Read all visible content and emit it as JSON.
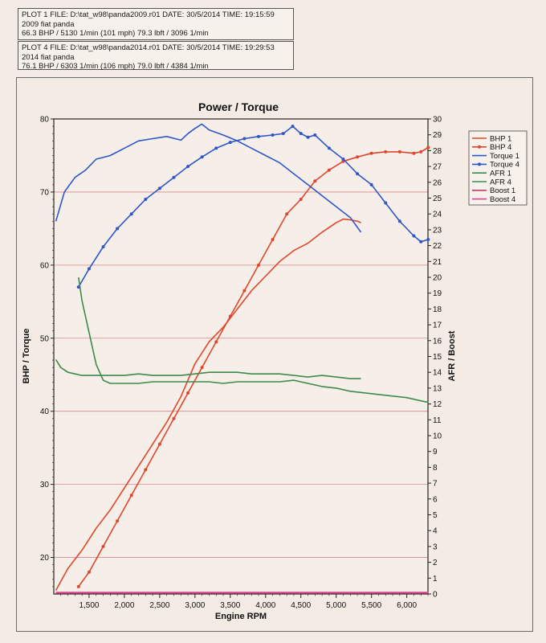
{
  "plots": [
    {
      "header": "PLOT 1 FILE: D:\\tat_w98\\panda2009.r01  DATE: 30/5/2014  TIME: 19:15:59",
      "description": "2009 fiat panda",
      "summary": "66.3 BHP / 5130 1/min (101 mph)     79.3 lbft / 3096 1/min"
    },
    {
      "header": "PLOT 4 FILE: D:\\tat_w98\\panda2014.r01  DATE: 30/5/2014  TIME: 19:29:53",
      "description": "2014 fiat panda",
      "summary": "76.1 BHP / 6303 1/min (106 mph)     79.0 lbft / 4384 1/min"
    }
  ],
  "chart_data": {
    "type": "line",
    "title": "Power / Torque",
    "xlabel": "Engine RPM",
    "ylabel_left": "BHP / Torque",
    "ylabel_right": "AFR / Boost",
    "xlim": [
      1000,
      6300
    ],
    "ylim_left": [
      15,
      80
    ],
    "ylim_right": [
      0,
      30
    ],
    "x_ticks": [
      "1,500",
      "2,000",
      "2,500",
      "3,000",
      "3,500",
      "4,000",
      "4,500",
      "5,000",
      "5,500",
      "6,000"
    ],
    "x_tick_values": [
      1500,
      2000,
      2500,
      3000,
      3500,
      4000,
      4500,
      5000,
      5500,
      6000
    ],
    "y_left_ticks": [
      20,
      30,
      40,
      50,
      60,
      70,
      80
    ],
    "y_right_ticks": [
      0,
      1,
      2,
      3,
      4,
      5,
      6,
      7,
      8,
      9,
      10,
      11,
      12,
      13,
      14,
      15,
      16,
      17,
      18,
      19,
      20,
      21,
      22,
      23,
      24,
      25,
      26,
      27,
      28,
      29,
      30
    ],
    "grid": true,
    "legend_position": "right",
    "series": [
      {
        "name": "BHP 1",
        "axis": "left",
        "color": "#e0462a",
        "markers": false,
        "x": [
          1030,
          1200,
          1400,
          1600,
          1800,
          2000,
          2200,
          2400,
          2600,
          2800,
          3000,
          3200,
          3400,
          3600,
          3800,
          4000,
          4200,
          4400,
          4600,
          4800,
          5000,
          5100,
          5200,
          5300,
          5350
        ],
        "y": [
          15.5,
          18.5,
          21,
          24,
          26.5,
          29.5,
          32.5,
          35.5,
          38.5,
          42,
          46.5,
          49.5,
          51.5,
          54,
          56.5,
          58.5,
          60.5,
          62,
          63,
          64.5,
          65.8,
          66.3,
          66.2,
          66,
          65.8
        ]
      },
      {
        "name": "BHP 4",
        "axis": "left",
        "color": "#e0462a",
        "markers": true,
        "x": [
          1350,
          1500,
          1700,
          1900,
          2100,
          2300,
          2500,
          2700,
          2900,
          3100,
          3300,
          3500,
          3700,
          3900,
          4100,
          4300,
          4500,
          4700,
          4900,
          5100,
          5300,
          5500,
          5700,
          5900,
          6100,
          6200,
          6303
        ],
        "y": [
          16,
          18,
          21.5,
          25,
          28.5,
          32,
          35.5,
          39,
          42.5,
          46,
          49.5,
          53,
          56.5,
          60,
          63.5,
          67,
          69,
          71.5,
          73,
          74.2,
          74.8,
          75.3,
          75.5,
          75.5,
          75.3,
          75.5,
          76.1
        ]
      },
      {
        "name": "Torque 1",
        "axis": "left",
        "color": "#2f56c8",
        "markers": false,
        "x": [
          1030,
          1150,
          1300,
          1450,
          1600,
          1800,
          2000,
          2200,
          2400,
          2600,
          2800,
          2900,
          3000,
          3096,
          3200,
          3400,
          3600,
          3800,
          4000,
          4200,
          4400,
          4600,
          4800,
          5000,
          5200,
          5350
        ],
        "y": [
          66,
          70,
          72,
          73,
          74.5,
          75,
          76,
          77,
          77.3,
          77.6,
          77.1,
          78,
          78.7,
          79.3,
          78.5,
          77.8,
          77,
          76,
          75,
          74,
          72.5,
          71,
          69.5,
          68,
          66.5,
          64.5
        ]
      },
      {
        "name": "Torque 4",
        "axis": "left",
        "color": "#2f56c8",
        "markers": true,
        "x": [
          1350,
          1500,
          1700,
          1900,
          2100,
          2300,
          2500,
          2700,
          2900,
          3100,
          3300,
          3500,
          3700,
          3900,
          4100,
          4250,
          4384,
          4500,
          4600,
          4700,
          4900,
          5100,
          5300,
          5500,
          5700,
          5900,
          6100,
          6200,
          6303
        ],
        "y": [
          57,
          59.5,
          62.5,
          65,
          67,
          69,
          70.5,
          72,
          73.5,
          74.8,
          76,
          76.8,
          77.3,
          77.6,
          77.8,
          78,
          79,
          78,
          77.5,
          77.8,
          76,
          74.5,
          72.5,
          71,
          68.5,
          66,
          64,
          63.2,
          63.5
        ]
      },
      {
        "name": "AFR 1",
        "axis": "right",
        "color": "#3e8a4a",
        "markers": false,
        "x": [
          1030,
          1100,
          1200,
          1300,
          1400,
          1600,
          1800,
          2000,
          2200,
          2400,
          2600,
          2800,
          3000,
          3200,
          3400,
          3600,
          3800,
          4000,
          4200,
          4400,
          4600,
          4800,
          5000,
          5200,
          5350
        ],
        "y": [
          14.8,
          14.3,
          14.0,
          13.9,
          13.8,
          13.8,
          13.8,
          13.8,
          13.9,
          13.8,
          13.8,
          13.8,
          13.9,
          14.0,
          14.0,
          14.0,
          13.9,
          13.9,
          13.9,
          13.8,
          13.7,
          13.8,
          13.7,
          13.6,
          13.6
        ]
      },
      {
        "name": "AFR 4",
        "axis": "right",
        "color": "#3e8a4a",
        "markers": false,
        "x": [
          1350,
          1400,
          1500,
          1600,
          1700,
          1800,
          2000,
          2200,
          2400,
          2600,
          2800,
          3000,
          3200,
          3400,
          3600,
          3800,
          4000,
          4200,
          4400,
          4600,
          4800,
          5000,
          5200,
          5400,
          5600,
          5800,
          6000,
          6200,
          6303
        ],
        "y": [
          20,
          18.5,
          16.5,
          14.5,
          13.5,
          13.3,
          13.3,
          13.3,
          13.4,
          13.4,
          13.4,
          13.4,
          13.4,
          13.3,
          13.4,
          13.4,
          13.4,
          13.4,
          13.5,
          13.3,
          13.1,
          13.0,
          12.8,
          12.7,
          12.6,
          12.5,
          12.4,
          12.2,
          12.1
        ]
      },
      {
        "name": "Boost 1",
        "axis": "right",
        "color": "#c43a6a",
        "markers": false,
        "x": [
          1030,
          6303
        ],
        "y": [
          0.05,
          0.05
        ]
      },
      {
        "name": "Boost 4",
        "axis": "right",
        "color": "#d4498f",
        "markers": false,
        "x": [
          1030,
          6303
        ],
        "y": [
          0.1,
          0.1
        ]
      }
    ]
  }
}
